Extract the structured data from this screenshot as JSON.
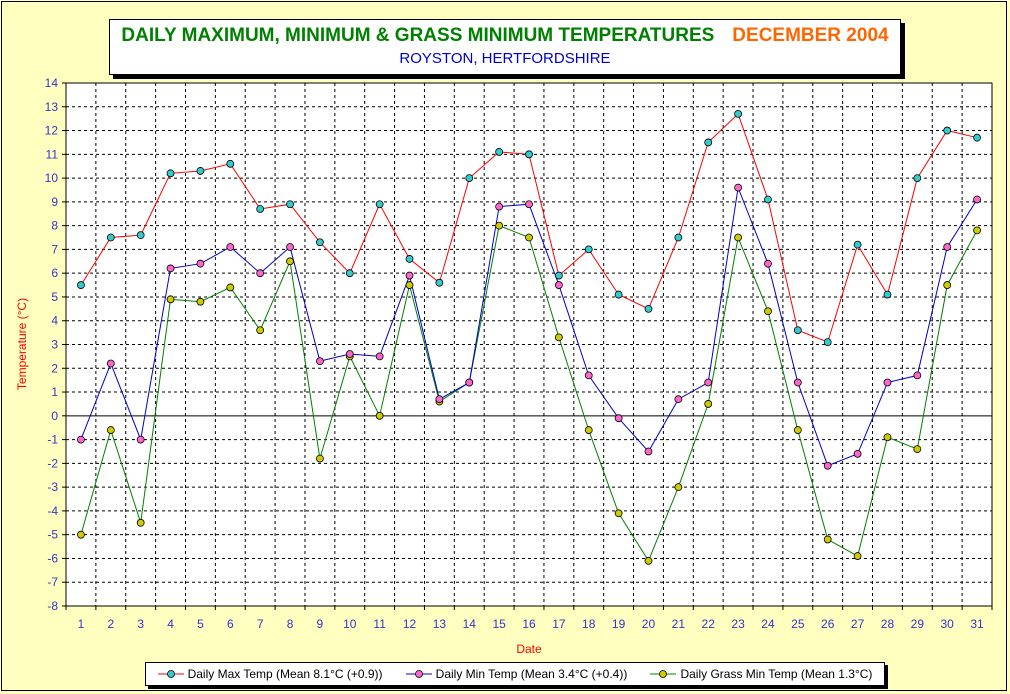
{
  "chart_data": {
    "type": "line",
    "title": "DAILY MAXIMUM, MINIMUM & GRASS MINIMUM TEMPERATURES",
    "title_month": "DECEMBER 2004",
    "subtitle": "ROYSTON, HERTFORDSHIRE",
    "xlabel": "Date",
    "ylabel": "Temperature (°C)",
    "ylim": [
      -8,
      14
    ],
    "ytick_step": 1,
    "x": [
      1,
      2,
      3,
      4,
      5,
      6,
      7,
      8,
      9,
      10,
      11,
      12,
      13,
      14,
      15,
      16,
      17,
      18,
      19,
      20,
      21,
      22,
      23,
      24,
      25,
      26,
      27,
      28,
      29,
      30,
      31
    ],
    "grid": true,
    "legend_position": "bottom",
    "series": [
      {
        "name": "Daily Max Temp (Mean 8.1°C (+0.9))",
        "line_color": "#ff0000",
        "marker_color": "#33cccc",
        "values": [
          5.5,
          7.5,
          7.6,
          10.2,
          10.3,
          10.6,
          8.7,
          8.9,
          7.3,
          6.0,
          8.9,
          6.6,
          5.6,
          10.0,
          11.1,
          11.0,
          5.9,
          7.0,
          5.1,
          4.5,
          7.5,
          11.5,
          12.7,
          9.1,
          3.6,
          3.1,
          7.2,
          5.1,
          10.0,
          12.0,
          11.7
        ]
      },
      {
        "name": "Daily Min Temp (Mean 3.4°C (+0.4))",
        "line_color": "#0000cc",
        "marker_color": "#ff66cc",
        "values": [
          -1.0,
          2.2,
          -1.0,
          6.2,
          6.4,
          7.1,
          6.0,
          7.1,
          2.3,
          2.6,
          2.5,
          5.9,
          0.7,
          1.4,
          8.8,
          8.9,
          5.5,
          1.7,
          -0.1,
          -1.5,
          0.7,
          1.4,
          9.6,
          6.4,
          1.4,
          -2.1,
          -1.6,
          1.4,
          1.7,
          7.1,
          9.1
        ]
      },
      {
        "name": "Daily Grass Min Temp (Mean 1.3°C)",
        "line_color": "#008000",
        "marker_color": "#cccc00",
        "values": [
          -5.0,
          -0.6,
          -4.5,
          4.9,
          4.8,
          5.4,
          3.6,
          6.5,
          -1.8,
          2.5,
          0.0,
          5.5,
          0.6,
          1.4,
          8.0,
          7.5,
          3.3,
          -0.6,
          -4.1,
          -6.1,
          -3.0,
          0.5,
          7.5,
          4.4,
          -0.6,
          -5.2,
          -5.9,
          -0.9,
          -1.4,
          5.5,
          7.8
        ]
      }
    ]
  }
}
